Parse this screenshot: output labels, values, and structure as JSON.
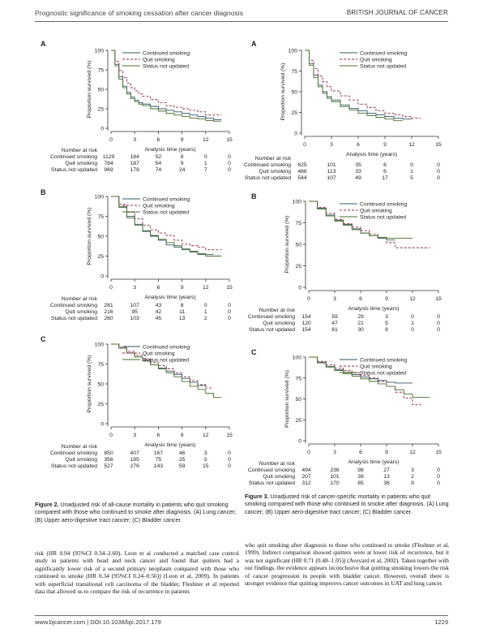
{
  "header": {
    "left": "Prognostic significance of smoking cessation after cancer diagnosis",
    "right": "BRITISH JOURNAL OF CANCER"
  },
  "colors": {
    "continued": "#2f5a6b",
    "quit": "#8b2745",
    "notupdated": "#4a6e2a"
  },
  "common": {
    "ylabel": "Proportion survived (%)",
    "xlabel": "Analysis time (years)",
    "risk_title": "Number at risk",
    "rows": [
      "Continued smoking",
      "Quit smoking",
      "Status not updated"
    ],
    "xticks": [
      "0",
      "3",
      "6",
      "9",
      "12",
      "15"
    ],
    "yticks": [
      "0",
      "25",
      "50",
      "75",
      "100"
    ]
  },
  "panels": [
    {
      "id": "f2a",
      "label": "A",
      "legend": [
        "Continued  smoking",
        "Quit smoking",
        "Status not updated"
      ],
      "risk": [
        [
          "1129",
          "184",
          "52",
          "8",
          "0",
          "0"
        ],
        [
          "784",
          "187",
          "54",
          "9",
          "1",
          "0"
        ],
        [
          "969",
          "178",
          "74",
          "24",
          "7",
          "0"
        ]
      ],
      "chart_data": {
        "type": "line",
        "xlim": [
          0,
          15
        ],
        "ylim": [
          0,
          100
        ],
        "series": [
          {
            "name": "Continued  smoking",
            "x": [
              0,
              0.5,
              1,
              1.5,
              2,
              2.5,
              3,
              3.5,
              4,
              5,
              6,
              7,
              8,
              9,
              10,
              11,
              12,
              13,
              14
            ],
            "y": [
              100,
              82,
              66,
              54,
              46,
              40,
              36,
              33,
              31,
              28,
              25,
              23,
              21,
              19,
              17,
              15,
              13,
              11,
              11
            ]
          },
          {
            "name": "Quit smoking",
            "x": [
              0,
              0.5,
              1,
              1.5,
              2,
              2.5,
              3,
              3.5,
              4,
              5,
              6,
              7,
              8,
              9,
              10,
              11,
              12,
              13,
              14
            ],
            "y": [
              100,
              86,
              74,
              65,
              58,
              52,
              48,
              44,
              41,
              37,
              33,
              29,
              27,
              25,
              23,
              21,
              17,
              17,
              17
            ]
          },
          {
            "name": "Status not updated",
            "x": [
              0,
              0.5,
              1,
              1.5,
              2,
              2.5,
              3,
              3.5,
              4,
              5,
              6,
              7,
              8,
              9,
              10,
              11,
              12,
              13,
              14
            ],
            "y": [
              100,
              80,
              63,
              52,
              44,
              38,
              34,
              31,
              29,
              25,
              22,
              19,
              17,
              15,
              13,
              12,
              10,
              9,
              9
            ]
          }
        ]
      }
    },
    {
      "id": "f2b",
      "label": "B",
      "legend": [
        "Continued  smoking",
        "Quit smoking",
        "Status not updated"
      ],
      "risk": [
        [
          "281",
          "107",
          "43",
          "8",
          "0",
          "0"
        ],
        [
          "216",
          "95",
          "42",
          "11",
          "1",
          "0"
        ],
        [
          "260",
          "103",
          "45",
          "13",
          "2",
          "0"
        ]
      ],
      "chart_data": {
        "type": "line",
        "xlim": [
          0,
          15
        ],
        "ylim": [
          0,
          100
        ],
        "series": [
          {
            "name": "Continued  smoking",
            "x": [
              0,
              1,
              2,
              3,
              4,
              5,
              6,
              7,
              8,
              9,
              10,
              11,
              12,
              13
            ],
            "y": [
              100,
              87,
              75,
              65,
              56,
              50,
              45,
              39,
              36,
              33,
              30,
              27,
              27,
              27
            ]
          },
          {
            "name": "Quit smoking",
            "x": [
              0,
              1,
              2,
              3,
              4,
              5,
              6,
              7,
              8,
              9,
              10,
              11,
              12,
              13,
              14
            ],
            "y": [
              100,
              90,
              80,
              72,
              64,
              58,
              54,
              51,
              45,
              40,
              38,
              36,
              33,
              33,
              33
            ]
          },
          {
            "name": "Status not updated",
            "x": [
              0,
              1,
              2,
              3,
              4,
              5,
              6,
              7,
              8,
              9,
              10,
              11,
              12,
              13,
              14
            ],
            "y": [
              100,
              86,
              73,
              64,
              57,
              51,
              46,
              42,
              38,
              34,
              31,
              28,
              25,
              25,
              25
            ]
          }
        ]
      }
    },
    {
      "id": "f2c",
      "label": "C",
      "legend": [
        "Continued  smoking",
        "Quit smoking",
        "Status not updated"
      ],
      "risk": [
        [
          "850",
          "407",
          "167",
          "46",
          "3",
          "0"
        ],
        [
          "356",
          "185",
          "75",
          "25",
          "5",
          "0"
        ],
        [
          "527",
          "276",
          "143",
          "59",
          "15",
          "0"
        ]
      ],
      "chart_data": {
        "type": "line",
        "xlim": [
          0,
          15
        ],
        "ylim": [
          0,
          100
        ],
        "series": [
          {
            "name": "Continued  smoking",
            "x": [
              0,
              1,
              2,
              3,
              4,
              5,
              6,
              7,
              8,
              9,
              10,
              11,
              12
            ],
            "y": [
              100,
              95,
              89,
              84,
              79,
              74,
              70,
              66,
              62,
              57,
              52,
              48,
              46
            ]
          },
          {
            "name": "Quit smoking",
            "x": [
              0,
              1,
              2,
              3,
              4,
              5,
              6,
              7,
              8,
              9,
              10,
              11,
              12,
              13
            ],
            "y": [
              100,
              96,
              91,
              86,
              81,
              77,
              73,
              69,
              64,
              59,
              54,
              49,
              45,
              45
            ]
          },
          {
            "name": "Status not updated",
            "x": [
              0,
              1,
              2,
              3,
              4,
              5,
              6,
              7,
              8,
              9,
              10,
              11,
              12,
              13,
              14
            ],
            "y": [
              100,
              95,
              89,
              84,
              79,
              74,
              69,
              64,
              59,
              53,
              47,
              43,
              38,
              33,
              33
            ]
          }
        ]
      }
    },
    {
      "id": "f3a",
      "label": "A",
      "legend": [
        "Continued  smoking",
        "Quit smoking",
        "Status not updated"
      ],
      "risk": [
        [
          "625",
          "101",
          "35",
          "6",
          "0",
          "0"
        ],
        [
          "466",
          "113",
          "33",
          "6",
          "1",
          "0"
        ],
        [
          "544",
          "107",
          "49",
          "17",
          "5",
          "0"
        ]
      ],
      "chart_data": {
        "type": "line",
        "xlim": [
          0,
          15
        ],
        "ylim": [
          0,
          100
        ],
        "series": [
          {
            "name": "Continued  smoking",
            "x": [
              0,
              0.5,
              1,
              1.5,
              2,
              2.5,
              3,
              4,
              5,
              6,
              7,
              8,
              9,
              10,
              11,
              12
            ],
            "y": [
              100,
              84,
              70,
              58,
              50,
              44,
              40,
              34,
              30,
              27,
              24,
              22,
              20,
              18,
              17,
              17
            ]
          },
          {
            "name": "Quit smoking",
            "x": [
              0,
              0.5,
              1,
              1.5,
              2,
              2.5,
              3,
              4,
              5,
              6,
              7,
              8,
              9,
              10,
              11,
              12,
              13
            ],
            "y": [
              100,
              88,
              78,
              69,
              62,
              56,
              51,
              45,
              40,
              35,
              31,
              27,
              24,
              22,
              20,
              18,
              18
            ]
          },
          {
            "name": "Status not updated",
            "x": [
              0,
              0.5,
              1,
              1.5,
              2,
              2.5,
              3,
              4,
              5,
              6,
              7,
              8,
              9,
              10,
              11
            ],
            "y": [
              100,
              82,
              67,
              56,
              48,
              42,
              38,
              32,
              28,
              24,
              21,
              19,
              17,
              15,
              15
            ]
          }
        ]
      }
    },
    {
      "id": "f3b",
      "label": "B",
      "legend": [
        "Continued  smoking",
        "Quit smoking",
        "Status not updated"
      ],
      "risk": [
        [
          "154",
          "59",
          "29",
          "3",
          "0",
          "0"
        ],
        [
          "120",
          "47",
          "21",
          "5",
          "1",
          "0"
        ],
        [
          "154",
          "61",
          "30",
          "8",
          "0",
          "0"
        ]
      ],
      "chart_data": {
        "type": "line",
        "xlim": [
          0,
          15
        ],
        "ylim": [
          0,
          100
        ],
        "series": [
          {
            "name": "Continued  smoking",
            "x": [
              0,
              1,
              2,
              3,
              4,
              5,
              6,
              7,
              8,
              9,
              10
            ],
            "y": [
              100,
              92,
              84,
              78,
              73,
              68,
              63,
              60,
              57,
              55,
              55
            ]
          },
          {
            "name": "Quit smoking",
            "x": [
              0,
              1,
              2,
              3,
              4,
              5,
              6,
              7,
              8,
              9,
              10,
              11,
              12,
              13,
              14
            ],
            "y": [
              100,
              93,
              86,
              79,
              74,
              70,
              66,
              62,
              58,
              52,
              46,
              46,
              46,
              46,
              46
            ]
          },
          {
            "name": "Status not updated",
            "x": [
              0,
              1,
              2,
              3,
              4,
              5,
              6,
              7,
              8,
              9,
              10,
              11,
              12
            ],
            "y": [
              100,
              91,
              83,
              77,
              72,
              67,
              63,
              60,
              58,
              57,
              57,
              57,
              57
            ]
          }
        ]
      }
    },
    {
      "id": "f3c",
      "label": "C",
      "legend": [
        "Continued  smoking",
        "Quit smoking",
        "Status not updated"
      ],
      "risk": [
        [
          "494",
          "236",
          "98",
          "27",
          "3",
          "0"
        ],
        [
          "207",
          "101",
          "39",
          "13",
          "2",
          "0"
        ],
        [
          "312",
          "170",
          "85",
          "36",
          "9",
          "0"
        ]
      ],
      "chart_data": {
        "type": "line",
        "xlim": [
          0,
          15
        ],
        "ylim": [
          0,
          100
        ],
        "series": [
          {
            "name": "Continued  smoking",
            "x": [
              0,
              1,
              2,
              3,
              4,
              5,
              6,
              7,
              8,
              9,
              10,
              11,
              12
            ],
            "y": [
              100,
              94,
              89,
              85,
              82,
              79,
              76,
              74,
              72,
              70,
              69,
              69,
              69
            ]
          },
          {
            "name": "Quit smoking",
            "x": [
              0,
              1,
              2,
              3,
              4,
              5,
              6,
              7,
              8,
              9,
              10,
              11,
              12,
              13
            ],
            "y": [
              100,
              95,
              91,
              87,
              84,
              81,
              78,
              75,
              71,
              65,
              58,
              51,
              43,
              43
            ]
          },
          {
            "name": "Status not updated",
            "x": [
              0,
              1,
              2,
              3,
              4,
              5,
              6,
              7,
              8,
              9,
              10,
              11,
              12,
              13,
              14
            ],
            "y": [
              100,
              93,
              88,
              84,
              80,
              77,
              74,
              71,
              68,
              65,
              61,
              56,
              52,
              52,
              52
            ]
          }
        ]
      }
    }
  ],
  "fig2_caption": {
    "bold": "Figure 2.",
    "text": " Unadjusted risk of all-cause mortality in patients who quit smoking compared with those who continued to smoke after diagnosis. (A) Lung cancer; (B) Upper aero-digestive tract cancer; (C) Bladder cancer."
  },
  "fig3_caption": {
    "bold": "Figure 3.",
    "text": " Unadjusted risk of cancer-specific mortality in patients who quit smoking compared with those who continued to smoke after diagnosis. (A) Lung cancer; (B) Upper aero-digestive tract cancer; (C) Bladder cancer."
  },
  "body_left": "risk (HR 0.94 (95%CI 0.34–2.60). Leon et al conducted a matched case control study in patients with head and neck cancer and found that quitters had a significantly lower risk of a second primary neoplasm compared with those who continued to smoke (HR 0.34 (95%CI 0.24–0.56)) (Leon et al, 2009). In patients with superficial transitional cell carcinoma of the bladder, Fleshner et al reported data that allowed us to compare the risk of recurrence in patients",
  "body_right": "who quit smoking after diagnosis to those who continued to smoke (Fleshner et al, 1999). Indirect comparison showed quitters were at lower risk of recurrence, but it was not significant (HR 0.71 (0.48–1.05)) (Aveyard et al, 2002). Taken together with our findings, the evidence appears inconclusive that quitting smoking lowers the risk of cancer progression in people with bladder cancer. However, overall there is stronger evidence that quitting improves cancer outcomes in UAT and lung cancer.",
  "footer": {
    "left": "www.bjcancer.com | DOI:10.1038/bjc.2017.179",
    "right": "1229"
  }
}
